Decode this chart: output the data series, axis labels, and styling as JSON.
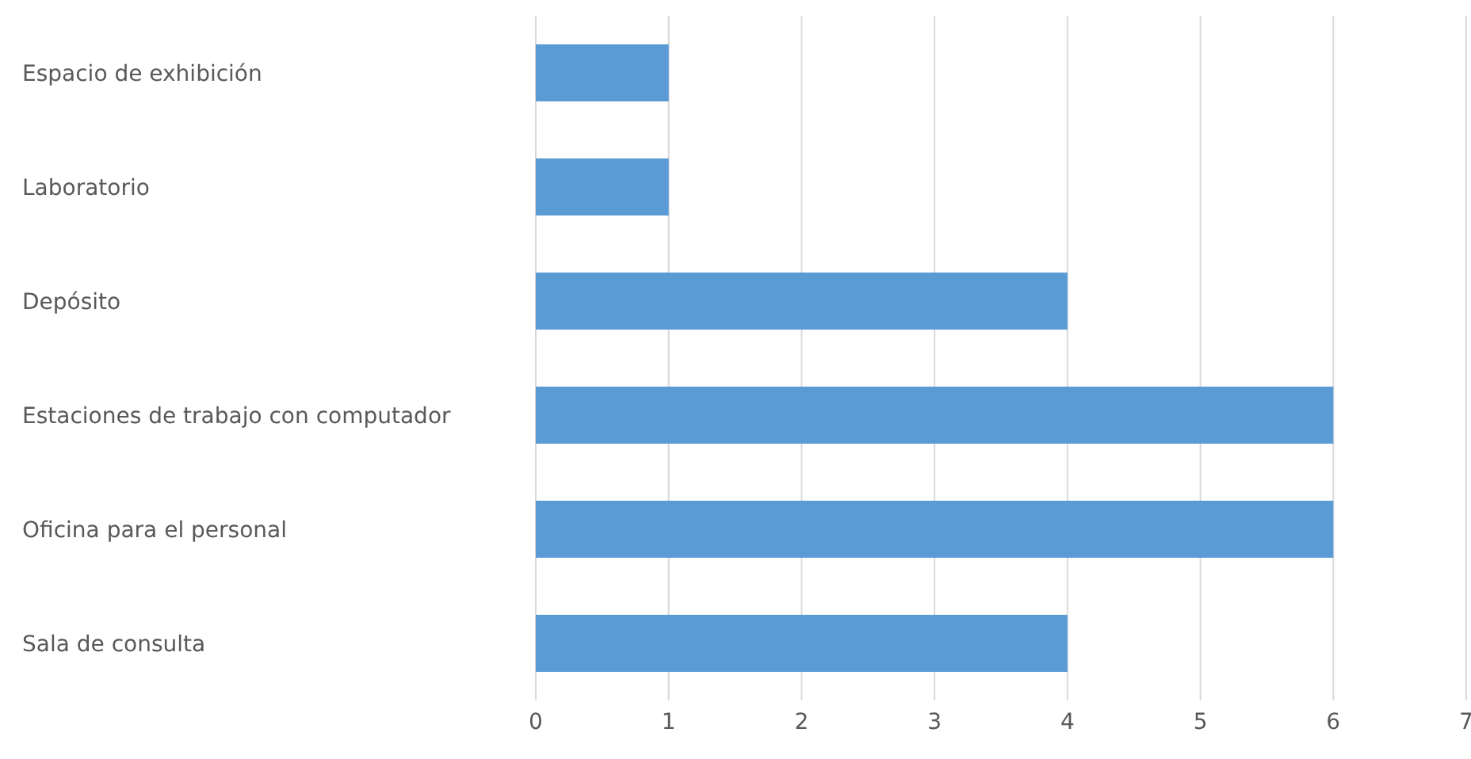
{
  "chart_data": {
    "type": "bar",
    "orientation": "horizontal",
    "categories": [
      "Espacio de exhibición",
      "Laboratorio",
      "Depósito",
      "Estaciones de trabajo con computador",
      "Oficina para el personal",
      "Sala de consulta"
    ],
    "values": [
      1,
      1,
      4,
      6,
      6,
      4
    ],
    "color": "#5b9bd5",
    "xlim": [
      0,
      7
    ],
    "xticks": [
      0,
      1,
      2,
      3,
      4,
      5,
      6,
      7
    ],
    "grid": "x",
    "legend": false
  }
}
